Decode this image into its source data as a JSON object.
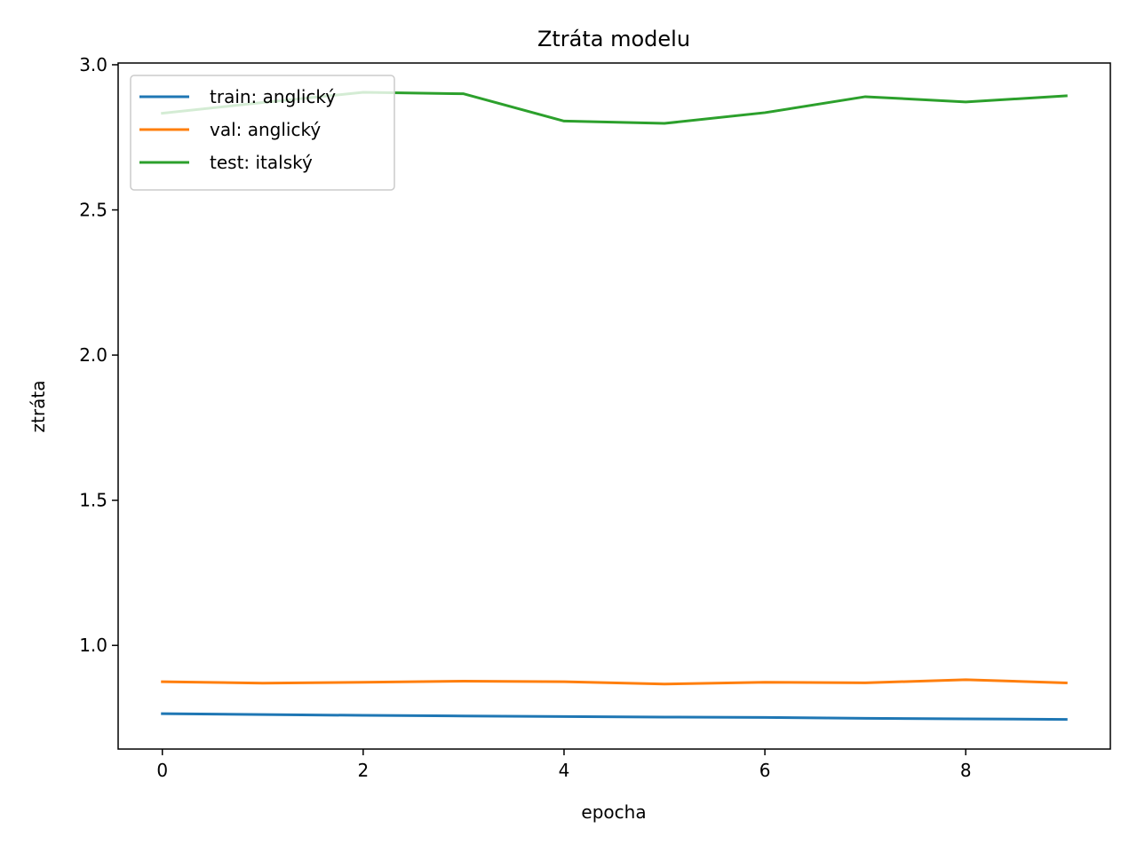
{
  "chart_data": {
    "type": "line",
    "title": "Ztráta modelu",
    "xlabel": "epocha",
    "ylabel": "ztráta",
    "x": [
      0,
      1,
      2,
      3,
      4,
      5,
      6,
      7,
      8,
      9
    ],
    "xlim": [
      -0.44,
      9.44
    ],
    "ylim": [
      0.643,
      3.006
    ],
    "xticks": [
      0,
      2,
      4,
      6,
      8
    ],
    "yticks": [
      1.0,
      1.5,
      2.0,
      2.5,
      3.0
    ],
    "xtick_labels": [
      "0",
      "2",
      "4",
      "6",
      "8"
    ],
    "ytick_labels": [
      "1.0",
      "1.5",
      "2.0",
      "2.5",
      "3.0"
    ],
    "grid": false,
    "legend_position": "top-left",
    "series": [
      {
        "name": "train: anglický",
        "color": "#1f77b4",
        "values": [
          0.765,
          0.762,
          0.759,
          0.757,
          0.755,
          0.753,
          0.752,
          0.749,
          0.747,
          0.745
        ]
      },
      {
        "name": "val: anglický",
        "color": "#ff7f0e",
        "values": [
          0.875,
          0.87,
          0.873,
          0.877,
          0.875,
          0.867,
          0.873,
          0.871,
          0.882,
          0.871
        ]
      },
      {
        "name": "test: italský",
        "color": "#2ca02c",
        "values": [
          2.833,
          2.87,
          2.905,
          2.9,
          2.806,
          2.798,
          2.835,
          2.89,
          2.872,
          2.893
        ]
      }
    ]
  }
}
